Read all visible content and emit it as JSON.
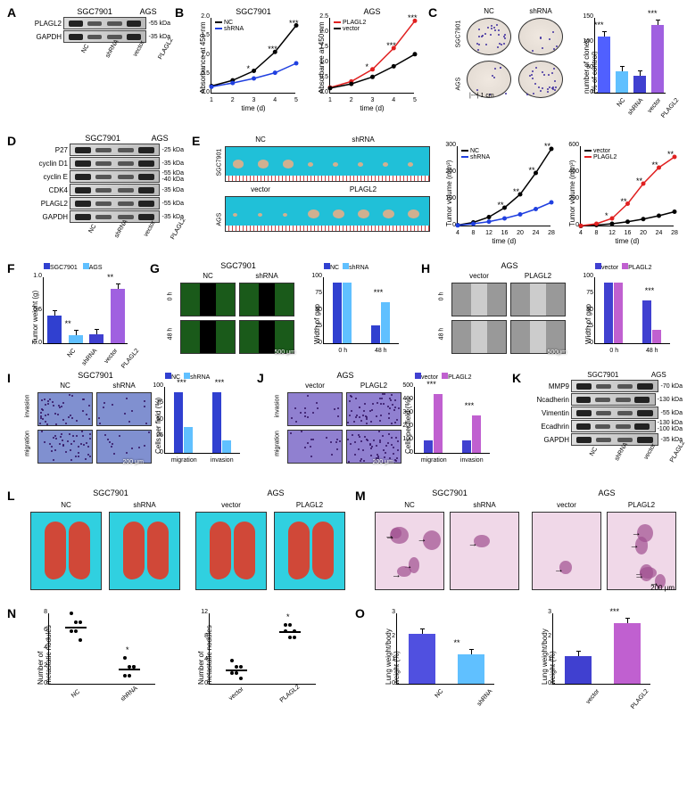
{
  "panels": {
    "A": {
      "label": "A",
      "blots": [
        "PLAGL2",
        "GAPDH"
      ],
      "sizes": [
        "-55 kDa",
        "-35 kDa"
      ],
      "lanes": [
        "NC",
        "shRNA",
        "vector",
        "PLAGL2"
      ],
      "cell_lines": [
        "SGC7901",
        "AGS"
      ]
    },
    "B": {
      "label": "B",
      "chart1": {
        "title": "SGC7901",
        "ylabel": "Absorbance at 450 nm",
        "xlabel": "time (d)",
        "xticks": [
          "1",
          "2",
          "3",
          "4",
          "5"
        ],
        "yticks": [
          "0.0",
          "0.5",
          "1.0",
          "1.5",
          "2.0"
        ],
        "series": [
          {
            "name": "NC",
            "color": "#000000",
            "values": [
              0.2,
              0.35,
              0.6,
              1.1,
              1.8
            ]
          },
          {
            "name": "shRNA",
            "color": "#2040e0",
            "values": [
              0.18,
              0.28,
              0.4,
              0.55,
              0.8
            ]
          }
        ],
        "stars": [
          "",
          "",
          "*",
          "***",
          "***"
        ]
      },
      "chart2": {
        "title": "AGS",
        "ylabel": "Absorbance at 450 nm",
        "xlabel": "time (d)",
        "xticks": [
          "1",
          "2",
          "3",
          "4",
          "5"
        ],
        "yticks": [
          "0.0",
          "0.5",
          "1.0",
          "1.5",
          "2.0",
          "2.5"
        ],
        "series": [
          {
            "name": "PLAGL2",
            "color": "#e02020",
            "values": [
              0.2,
              0.4,
              0.8,
              1.5,
              2.4
            ]
          },
          {
            "name": "vector",
            "color": "#000000",
            "values": [
              0.18,
              0.32,
              0.55,
              0.9,
              1.3
            ]
          }
        ],
        "stars": [
          "",
          "",
          "*",
          "***",
          "***"
        ]
      }
    },
    "C": {
      "label": "C",
      "rows": [
        "SGC7901",
        "AGS"
      ],
      "cols_top": [
        "NC",
        "shRNA"
      ],
      "cols_bot": [
        "vector",
        "PLAGL2"
      ],
      "scale": "1 cm",
      "bar_chart": {
        "ylabel": "number of clones\n(% of control)",
        "yticks": [
          "0",
          "50",
          "100",
          "150"
        ],
        "bars": [
          {
            "label": "NC",
            "color": "#5060ff",
            "value": 126,
            "star": "***"
          },
          {
            "label": "shRNA",
            "color": "#60c0ff",
            "value": 48,
            "star": ""
          },
          {
            "label": "vector",
            "color": "#4040d0",
            "value": 38,
            "star": ""
          },
          {
            "label": "PLAGL2",
            "color": "#a060e0",
            "value": 152,
            "star": "***"
          }
        ]
      }
    },
    "D": {
      "label": "D",
      "blots": [
        "P27",
        "cyclin D1",
        "cyclin E",
        "CDK4",
        "PLAGL2",
        "GAPDH"
      ],
      "sizes": [
        "-25 kDa",
        "-35 kDa",
        "-55 kDa\n-40 kDa",
        "-35 kDa",
        "-55 kDa",
        "-35 kDa"
      ],
      "lanes": [
        "NC",
        "shRNA",
        "vector",
        "PLAGL2"
      ],
      "cell_lines": [
        "SGC7901",
        "AGS"
      ]
    },
    "E": {
      "label": "E",
      "image_rows": [
        "SGC7901",
        "AGS"
      ],
      "image_headers_top": [
        "NC",
        "shRNA"
      ],
      "image_headers_bot": [
        "vector",
        "PLAGL2"
      ],
      "chart1": {
        "ylabel": "Tumor volume (mm³)",
        "xlabel": "time (d)",
        "xticks": [
          "4",
          "8",
          "12",
          "16",
          "20",
          "24",
          "28"
        ],
        "yticks": [
          "0",
          "100",
          "200",
          "300"
        ],
        "series": [
          {
            "name": "NC",
            "color": "#000000",
            "values": [
              5,
              15,
              35,
              70,
              120,
              200,
              290
            ]
          },
          {
            "name": "shRNA",
            "color": "#2040e0",
            "values": [
              4,
              10,
              18,
              30,
              45,
              65,
              90
            ]
          }
        ],
        "stars": [
          "",
          "",
          "",
          "**",
          "**",
          "**",
          "**"
        ]
      },
      "chart2": {
        "ylabel": "Tumor volume (mm³)",
        "xlabel": "time (d)",
        "xticks": [
          "4",
          "8",
          "12",
          "16",
          "20",
          "24",
          "28"
        ],
        "yticks": [
          "0",
          "200",
          "400",
          "600"
        ],
        "series": [
          {
            "name": "vector",
            "color": "#000000",
            "values": [
              3,
              10,
              20,
              35,
              55,
              80,
              110
            ]
          },
          {
            "name": "PLAGL2",
            "color": "#e02020",
            "values": [
              5,
              20,
              60,
              170,
              320,
              440,
              520
            ]
          }
        ],
        "stars": [
          "",
          "",
          "*",
          "**",
          "**",
          "**",
          "**"
        ]
      }
    },
    "F": {
      "label": "F",
      "ylabel": "Tumor weight (g)",
      "yticks": [
        "0.0",
        "0.5",
        "1.0"
      ],
      "legend": [
        "SGC7901",
        "AGS"
      ],
      "legend_colors": [
        "#3040d0",
        "#60c0ff"
      ],
      "bars": [
        {
          "label": "NC",
          "color": "#3040d0",
          "value": 0.42,
          "star": ""
        },
        {
          "label": "shRNA",
          "color": "#60c0ff",
          "value": 0.12,
          "star": "**"
        },
        {
          "label": "vector",
          "color": "#4040d0",
          "value": 0.13,
          "star": ""
        },
        {
          "label": "PLAGL2",
          "color": "#a060e0",
          "value": 0.82,
          "star": "**"
        }
      ]
    },
    "G": {
      "label": "G",
      "cell": "SGC7901",
      "cols": [
        "NC",
        "shRNA"
      ],
      "rows": [
        "0 h",
        "48 h"
      ],
      "scale": "500 μm",
      "bar_chart": {
        "ylabel": "Width of gap",
        "yticks": [
          "0",
          "25",
          "50",
          "75",
          "100"
        ],
        "legend": [
          "NC",
          "shRNA"
        ],
        "legend_colors": [
          "#3040d0",
          "#60c0ff"
        ],
        "groups": [
          {
            "x": "0 h",
            "bars": [
              {
                "color": "#3040d0",
                "value": 100
              },
              {
                "color": "#60c0ff",
                "value": 100
              }
            ],
            "star": ""
          },
          {
            "x": "48 h",
            "bars": [
              {
                "color": "#3040d0",
                "value": 30
              },
              {
                "color": "#60c0ff",
                "value": 68
              }
            ],
            "star": "***"
          }
        ]
      }
    },
    "H": {
      "label": "H",
      "cell": "AGS",
      "cols": [
        "vector",
        "PLAGL2"
      ],
      "rows": [
        "0 h",
        "48 h"
      ],
      "scale": "500μm",
      "bar_chart": {
        "ylabel": "Width of gap",
        "yticks": [
          "0",
          "25",
          "50",
          "75",
          "100"
        ],
        "legend": [
          "vector",
          "PLAGL2"
        ],
        "legend_colors": [
          "#4040d0",
          "#c060d0"
        ],
        "groups": [
          {
            "x": "0 h",
            "bars": [
              {
                "color": "#4040d0",
                "value": 100
              },
              {
                "color": "#c060d0",
                "value": 100
              }
            ],
            "star": ""
          },
          {
            "x": "48 h",
            "bars": [
              {
                "color": "#4040d0",
                "value": 70
              },
              {
                "color": "#c060d0",
                "value": 22
              }
            ],
            "star": "***"
          }
        ]
      }
    },
    "I": {
      "label": "I",
      "cell": "SGC7901",
      "cols": [
        "NC",
        "shRNA"
      ],
      "rows": [
        "invasion",
        "migration"
      ],
      "scale": "200 μm",
      "bar_chart": {
        "ylabel": "Cells per field (%)",
        "yticks": [
          "0",
          "25",
          "50",
          "75",
          "100"
        ],
        "legend": [
          "NC",
          "shRNA"
        ],
        "legend_colors": [
          "#3040d0",
          "#60c0ff"
        ],
        "groups": [
          {
            "x": "migration",
            "bars": [
              {
                "color": "#3040d0",
                "value": 100
              },
              {
                "color": "#60c0ff",
                "value": 42
              }
            ],
            "star": "***"
          },
          {
            "x": "invasion",
            "bars": [
              {
                "color": "#3040d0",
                "value": 100
              },
              {
                "color": "#60c0ff",
                "value": 21
              }
            ],
            "star": "***"
          }
        ]
      }
    },
    "J": {
      "label": "J",
      "cell": "AGS",
      "cols": [
        "vector",
        "PLAGL2"
      ],
      "rows": [
        "invasion",
        "migration"
      ],
      "scale": "200 μm",
      "bar_chart": {
        "ylabel": "Cells per field (%)",
        "yticks": [
          "0",
          "100",
          "200",
          "300",
          "400",
          "500"
        ],
        "legend": [
          "vector",
          "PLAGL2"
        ],
        "legend_colors": [
          "#4040d0",
          "#c060d0"
        ],
        "groups": [
          {
            "x": "migration",
            "bars": [
              {
                "color": "#4040d0",
                "value": 100
              },
              {
                "color": "#c060d0",
                "value": 460
              }
            ],
            "star": "***"
          },
          {
            "x": "invasion",
            "bars": [
              {
                "color": "#4040d0",
                "value": 100
              },
              {
                "color": "#c060d0",
                "value": 290
              }
            ],
            "star": "***"
          }
        ]
      }
    },
    "K": {
      "label": "K",
      "blots": [
        "MMP9",
        "Ncadherin",
        "Vimentin",
        "Ecadhrin",
        "GAPDH"
      ],
      "sizes": [
        "-70 kDa",
        "-130 kDa",
        "-55 kDa",
        "-130 kDa\n-100 kDa",
        "-35 kDa"
      ],
      "lanes": [
        "NC",
        "shRNA",
        "vector",
        "PLAGL2"
      ],
      "cell_lines": [
        "SGC7901",
        "AGS"
      ]
    },
    "L": {
      "label": "L",
      "cells": [
        "SGC7901",
        "AGS"
      ],
      "cols1": [
        "NC",
        "shRNA"
      ],
      "cols2": [
        "vector",
        "PLAGL2"
      ]
    },
    "M": {
      "label": "M",
      "cells": [
        "SGC7901",
        "AGS"
      ],
      "cols1": [
        "NC",
        "shRNA"
      ],
      "cols2": [
        "vector",
        "PLAGL2"
      ],
      "scale": "200 μm"
    },
    "N": {
      "label": "N",
      "chart1": {
        "ylabel": "Number of\nmetastatic nodules",
        "yticks": [
          "0",
          "2",
          "4",
          "6",
          "8"
        ],
        "groups": [
          {
            "x": "NC",
            "mean": 6.5,
            "pts": [
              8,
              7,
              7,
              6,
              6,
              5
            ]
          },
          {
            "x": "shRNA",
            "mean": 1.8,
            "pts": [
              3,
              2,
              2,
              1,
              1,
              2
            ],
            "star": "*"
          }
        ]
      },
      "chart2": {
        "ylabel": "Number of\nmetastatic nodules",
        "yticks": [
          "0",
          "4",
          "8",
          "12"
        ],
        "groups": [
          {
            "x": "vector",
            "mean": 2.5,
            "pts": [
              4,
              3,
              3,
              2,
              2,
              1
            ]
          },
          {
            "x": "PLAGL2",
            "mean": 9,
            "pts": [
              10,
              10,
              9,
              9,
              8,
              8
            ],
            "star": "*"
          }
        ]
      }
    },
    "O": {
      "label": "O",
      "chart1": {
        "ylabel": "Lung weight/body\nweight (%)",
        "yticks": [
          "0",
          "1",
          "2",
          "3"
        ],
        "bars": [
          {
            "x": "NC",
            "color": "#5050e0",
            "value": 2.1
          },
          {
            "x": "shRNA",
            "color": "#60c0ff",
            "value": 1.25,
            "star": "**"
          }
        ]
      },
      "chart2": {
        "ylabel": "Lung weight/body\nweight (%)",
        "yticks": [
          "0",
          "1",
          "2",
          "3"
        ],
        "bars": [
          {
            "x": "vector",
            "color": "#4040d0",
            "value": 1.15
          },
          {
            "x": "PLAGL2",
            "color": "#c060d0",
            "value": 2.55,
            "star": "***"
          }
        ]
      }
    }
  }
}
